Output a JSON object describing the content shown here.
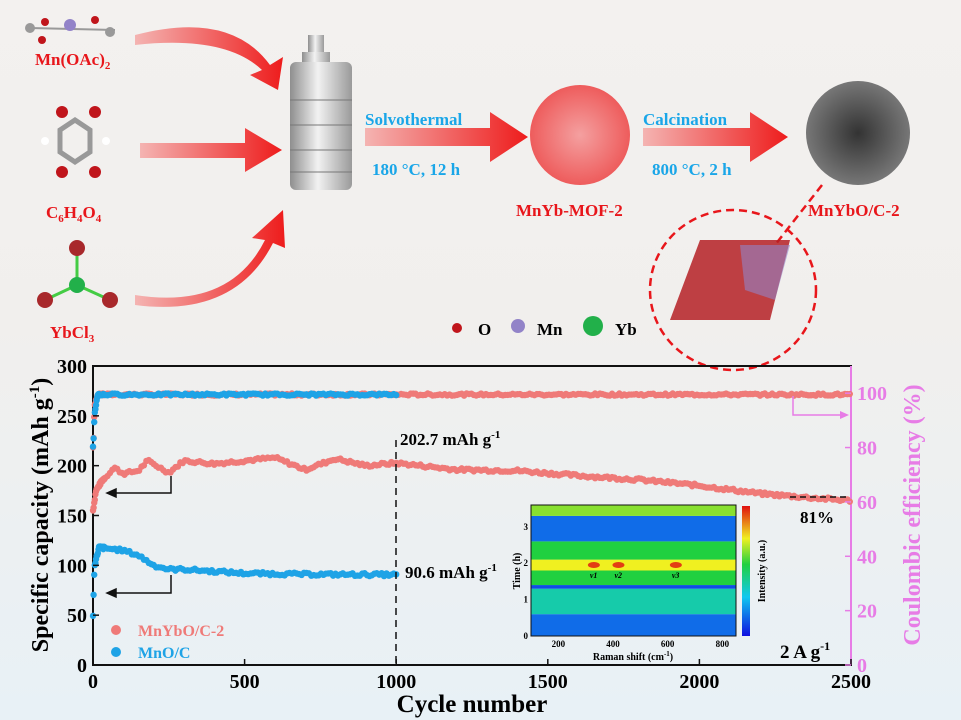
{
  "schematic": {
    "precursors": [
      "Mn(OAc)",
      "C6H4O4",
      "YbCl"
    ],
    "precursor_subscripts": {
      "mn": "2",
      "c6": [
        "6",
        "4",
        "4"
      ],
      "yb": "3"
    },
    "step1": {
      "name": "Solvothermal",
      "condition": "180 °C, 12 h"
    },
    "step2": {
      "name": "Calcination",
      "condition": "800 °C, 2 h"
    },
    "intermediate": "MnYb-MOF-2",
    "product": "MnYbO/C-2",
    "atom_legend": [
      {
        "label": "O",
        "color": "#c0151b"
      },
      {
        "label": "Mn",
        "color": "#9283c8"
      },
      {
        "label": "Yb",
        "color": "#22b04a"
      }
    ],
    "colors": {
      "label_red": "#e8161b",
      "label_blue": "#1aa6e8"
    }
  },
  "chart_data": [
    {
      "type": "scatter",
      "xlabel": "Cycle number",
      "ylabel": "Specific capacity (mAh g",
      "ylabel_sup": "-1",
      "ylabel_close": ")",
      "y2label": "Coulombic efficiency (%)",
      "xlim": [
        0,
        2500
      ],
      "ylim": [
        0,
        300
      ],
      "y2lim": [
        0,
        110
      ],
      "xticks": [
        "0",
        "500",
        "1000",
        "1500",
        "2000",
        "2500"
      ],
      "yticks": [
        "0",
        "50",
        "100",
        "150",
        "200",
        "250",
        "300"
      ],
      "y2ticks": [
        "0",
        "20",
        "40",
        "60",
        "80",
        "100"
      ],
      "grid": false,
      "legend_placement": "bottom-left",
      "series": [
        {
          "name": "MnYbO/C-2",
          "color": "#ef7a78",
          "capacity": {
            "x": [
              0,
              10,
              30,
              70,
              100,
              150,
              180,
              250,
              300,
              400,
              500,
              600,
              700,
              800,
              900,
              1000,
              1200,
              1400,
              1600,
              1800,
              2000,
              2200,
              2400,
              2500
            ],
            "y": [
              155,
              175,
              185,
              198,
              192,
              195,
              205,
              193,
              205,
              202,
              205,
              208,
              196,
              207,
              200,
              202.7,
              196,
              195,
              190,
              186,
              180,
              172,
              167,
              165
            ]
          },
          "efficiency": {
            "x": [
              1,
              5,
              15,
              2500
            ],
            "y": [
              80,
              95,
              99.5,
              99.5
            ]
          }
        },
        {
          "name": "MnO/C",
          "color": "#1ea3e6",
          "capacity": {
            "x": [
              0,
              5,
              20,
              100,
              150,
              200,
              250,
              300,
              500,
              700,
              1000
            ],
            "y": [
              50,
              100,
              118,
              115,
              110,
              100,
              96,
              96,
              92,
              91,
              90.6
            ]
          },
          "efficiency": {
            "x": [
              1,
              5,
              15,
              1000
            ],
            "y": [
              80,
              92,
              99.5,
              99.5
            ]
          }
        }
      ],
      "annotations": {
        "mnybo_value": "202.7 mAh g",
        "mno_value": "90.6 mAh g",
        "unit_sup": "-1",
        "retention": "81%",
        "current_density": "2 A g",
        "current_sup": "-1"
      }
    },
    {
      "type": "heatmap",
      "xlabel": "Raman shift (cm",
      "xlabel_sup": "-1",
      "xlabel_close": ")",
      "ylabel": "Time (h)",
      "colorbar_label": "Intensity (a.u.)",
      "xlim": [
        100,
        850
      ],
      "ylim": [
        0,
        3.6
      ],
      "xticks": [
        "200",
        "400",
        "600",
        "800"
      ],
      "yticks": [
        "0",
        "1",
        "2",
        "3"
      ],
      "peak_labels": [
        "ν1",
        "ν2",
        "ν3"
      ],
      "peak_positions": [
        330,
        420,
        630
      ],
      "time_bands": [
        {
          "from": 0,
          "to": 0.6,
          "intensity": 0.15
        },
        {
          "from": 0.6,
          "to": 1.3,
          "intensity": 0.4
        },
        {
          "from": 1.3,
          "to": 1.4,
          "intensity": 0.1
        },
        {
          "from": 1.4,
          "to": 1.8,
          "intensity": 0.55
        },
        {
          "from": 1.8,
          "to": 2.1,
          "intensity": 0.75
        },
        {
          "from": 2.1,
          "to": 2.6,
          "intensity": 0.55
        },
        {
          "from": 2.6,
          "to": 3.3,
          "intensity": 0.15
        },
        {
          "from": 3.3,
          "to": 3.6,
          "intensity": 0.65
        }
      ]
    }
  ]
}
